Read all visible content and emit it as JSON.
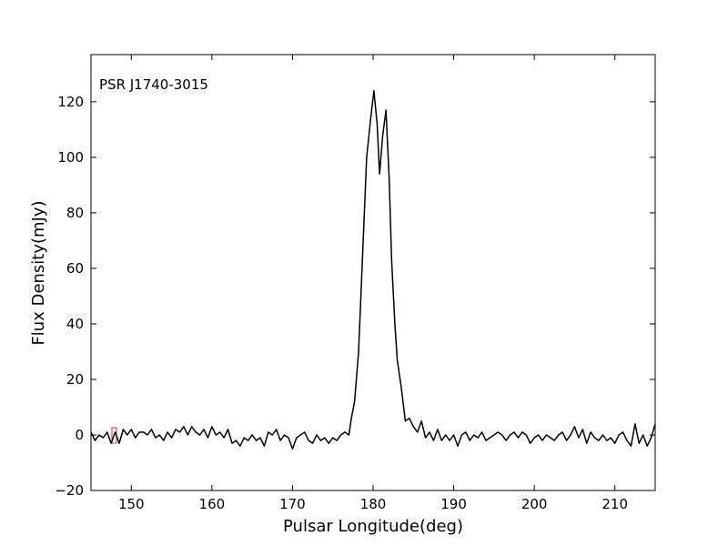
{
  "chart_data": {
    "type": "line",
    "annotation": "PSR J1740-3015",
    "xlabel": "Pulsar Longitude(deg)",
    "ylabel": "Flux Density(mJy)",
    "xlim": [
      145,
      215
    ],
    "ylim": [
      -20,
      137
    ],
    "xticks": [
      150,
      160,
      170,
      180,
      190,
      200,
      210
    ],
    "yticks": [
      {
        "value": -20,
        "label": "−20"
      },
      0,
      20,
      40,
      60,
      80,
      100,
      120
    ],
    "grid": false,
    "series": [
      {
        "color": "#000000",
        "x": [
          145,
          145.5,
          146,
          146.5,
          147,
          147.5,
          148,
          148.5,
          149,
          149.5,
          150,
          150.5,
          151,
          151.5,
          152,
          152.5,
          153,
          153.5,
          154,
          154.5,
          155,
          155.5,
          156,
          156.5,
          157,
          157.5,
          158,
          158.5,
          159,
          159.5,
          160,
          160.5,
          161,
          161.5,
          162,
          162.5,
          163,
          163.5,
          164,
          164.5,
          165,
          165.5,
          166,
          166.5,
          167,
          167.5,
          168,
          168.5,
          169,
          169.5,
          170,
          170.5,
          171,
          171.5,
          172,
          172.5,
          173,
          173.5,
          174,
          174.5,
          175,
          175.5,
          176,
          176.5,
          177,
          177.3,
          177.7,
          178.2,
          178.7,
          179.2,
          179.7,
          180.1,
          180.5,
          180.8,
          181.2,
          181.6,
          182,
          182.3,
          182.7,
          183,
          183.5,
          184,
          184.5,
          185,
          185.5,
          186,
          186.5,
          187,
          187.5,
          188,
          188.5,
          189,
          189.5,
          190,
          190.5,
          191,
          191.5,
          192,
          192.5,
          193,
          193.5,
          194,
          194.5,
          195,
          195.5,
          196,
          196.5,
          197,
          197.5,
          198,
          198.5,
          199,
          199.5,
          200,
          200.5,
          201,
          201.5,
          202,
          202.5,
          203,
          203.5,
          204,
          204.5,
          205,
          205.5,
          206,
          206.5,
          207,
          207.5,
          208,
          208.5,
          209,
          209.5,
          210,
          210.5,
          211,
          211.5,
          212,
          212.5,
          213,
          213.5,
          214,
          214.5,
          215
        ],
        "values": [
          1,
          -2,
          0,
          -1,
          1,
          -3,
          1,
          -3,
          2,
          0,
          2,
          -1,
          1,
          1,
          0,
          2,
          -1,
          0,
          -2,
          1,
          -1,
          2,
          1,
          3,
          0,
          3,
          1,
          0,
          2,
          -1,
          3,
          0,
          1,
          -1,
          2,
          -3,
          -2,
          -4,
          -1,
          -2,
          0,
          -2,
          -1,
          -4,
          1,
          0,
          2,
          -2,
          0,
          -1,
          -5,
          -1,
          0,
          1,
          -2,
          -3,
          0,
          -2,
          -1,
          -3,
          -1,
          -2,
          0,
          1,
          0,
          6,
          12,
          30,
          65,
          100,
          114,
          124,
          112,
          94,
          108,
          117,
          92,
          63,
          40,
          27,
          17,
          5,
          6,
          3,
          1,
          5,
          -1,
          1,
          -2,
          2,
          -2,
          0,
          -2,
          0,
          -4,
          0,
          1,
          -2,
          0,
          -1,
          1,
          -2,
          -1,
          0,
          1,
          0,
          -2,
          0,
          1,
          -1,
          1,
          0,
          -3,
          -1,
          0,
          -2,
          0,
          -1,
          -2,
          0,
          1,
          -2,
          0,
          3,
          -1,
          2,
          -3,
          1,
          -1,
          -2,
          0,
          -2,
          -1,
          -3,
          0,
          1,
          -2,
          -4,
          4,
          -3,
          0,
          -4,
          -1,
          4
        ]
      }
    ]
  }
}
